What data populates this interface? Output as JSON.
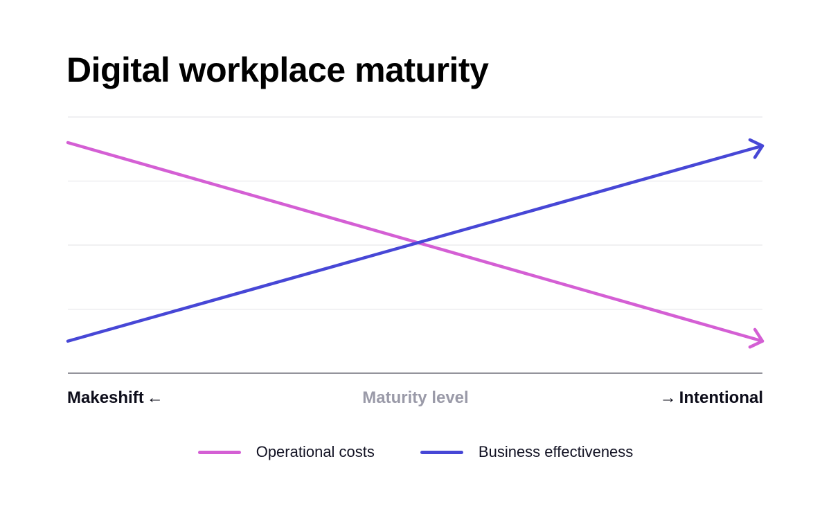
{
  "colors": {
    "operational_costs": "#d45fd4",
    "business_effectiveness": "#4747d6",
    "grid": "#e2e2e6",
    "axis": "#555560"
  },
  "chart_data": {
    "type": "line",
    "title": "Digital workplace maturity",
    "xlabel": "Maturity level",
    "x_start_label": "Makeshift",
    "x_end_label": "Intentional",
    "left_arrow": "←",
    "right_arrow": "→",
    "x": [
      0,
      1
    ],
    "ylim": [
      0,
      4
    ],
    "grid": true,
    "legend_position": "bottom",
    "series": [
      {
        "name": "Operational costs",
        "values": [
          3.6,
          0.5
        ],
        "color": "#d45fd4"
      },
      {
        "name": "Business effectiveness",
        "values": [
          0.5,
          3.55
        ],
        "color": "#4747d6"
      }
    ]
  }
}
